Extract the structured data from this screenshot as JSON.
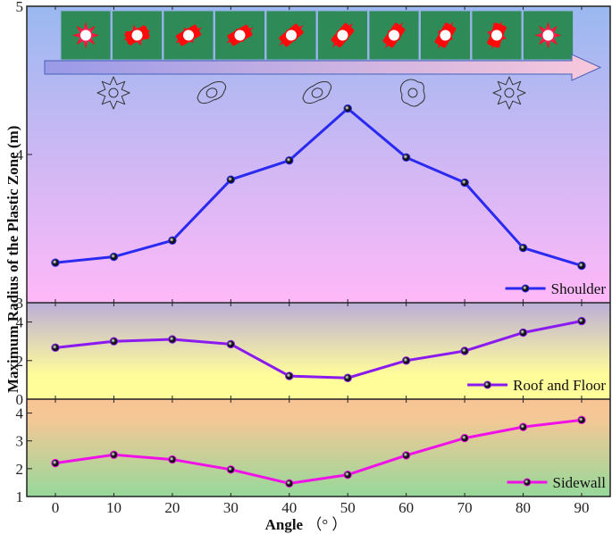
{
  "chart_data": [
    {
      "type": "line",
      "panel": "top",
      "title": "",
      "xlabel": "Angle (°)",
      "ylabel": "Maximum Radius of the Plastic Zone (m)",
      "x": [
        0,
        10,
        20,
        30,
        40,
        50,
        60,
        70,
        80,
        90
      ],
      "series": [
        {
          "name": "Shoulder",
          "color": "#2a2af0",
          "values": [
            3.27,
            3.31,
            3.42,
            3.83,
            3.96,
            4.31,
            3.98,
            3.81,
            3.37,
            3.25
          ]
        }
      ],
      "ylim": [
        3,
        5
      ],
      "yticks": [
        3,
        4,
        5
      ],
      "legend_position": "lower right",
      "background_gradient": [
        "#9ab8f0",
        "#ffb8f8"
      ]
    },
    {
      "type": "line",
      "panel": "middle",
      "x": [
        0,
        10,
        20,
        30,
        40,
        50,
        60,
        70,
        80,
        90
      ],
      "series": [
        {
          "name": "Roof and Floor",
          "color": "#8a1af0",
          "values": [
            2.67,
            3.0,
            3.1,
            2.85,
            1.2,
            1.1,
            2.0,
            2.5,
            3.45,
            4.05
          ]
        }
      ],
      "ylim": [
        0,
        5
      ],
      "yticks": [
        0,
        2,
        4
      ],
      "legend_position": "lower right",
      "background_gradient": [
        "#bcaed8",
        "#fffc9a"
      ]
    },
    {
      "type": "line",
      "panel": "bottom",
      "x": [
        0,
        10,
        20,
        30,
        40,
        50,
        60,
        70,
        80,
        90
      ],
      "series": [
        {
          "name": "Sidewall",
          "color": "#f010e8",
          "values": [
            2.2,
            2.5,
            2.33,
            1.97,
            1.47,
            1.78,
            2.48,
            3.1,
            3.5,
            3.75
          ]
        }
      ],
      "ylim": [
        1,
        4.5
      ],
      "yticks": [
        1,
        2,
        3,
        4
      ],
      "legend_position": "lower right",
      "background_gradient": [
        "#f8c494",
        "#96d89a"
      ]
    }
  ],
  "axes": {
    "ylabel": "Maximum Radius of the Plastic Zone  (m)",
    "xlabel_bold": "Angle",
    "xlabel_unit": "（°  ）",
    "xtick_labels": [
      "0",
      "10",
      "20",
      "30",
      "40",
      "50",
      "60",
      "70",
      "80",
      "90"
    ]
  },
  "inset": {
    "tiles_count": 10,
    "tile_color": "#2e8b57",
    "arrow_gradient": [
      "#9a9ae8",
      "#f8c8dc"
    ],
    "shape_icons": [
      "gear-shape",
      "dogbone-shape",
      "dogbone-shape",
      "lobed-shape",
      "gear-shape"
    ]
  }
}
